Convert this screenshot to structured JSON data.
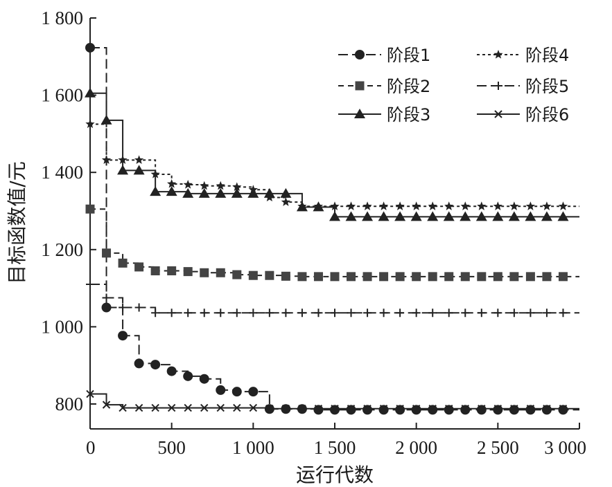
{
  "chart_data": {
    "type": "line",
    "xlabel": "运行代数",
    "ylabel": "目标函数值/元",
    "xlim": [
      0,
      3000
    ],
    "ylim": [
      740,
      1800
    ],
    "xticks": [
      0,
      500,
      1000,
      1500,
      2000,
      2500,
      3000
    ],
    "yticks": [
      800,
      1000,
      1200,
      1400,
      1600,
      1800
    ],
    "xtick_labels": [
      "0",
      "500",
      "1 000",
      "1 500",
      "2 000",
      "2 500",
      "3 000"
    ],
    "ytick_labels": [
      "800",
      "1 000",
      "1 200",
      "1 400",
      "1 600",
      "1 800"
    ],
    "grid": false,
    "legend_position": "top-right",
    "series": [
      {
        "name": "阶段1",
        "style": "dash",
        "marker": "circle",
        "x": [
          0,
          100,
          200,
          300,
          400,
          500,
          600,
          700,
          800,
          900,
          1000,
          1100,
          1200,
          1300,
          1400,
          1500,
          1600,
          1700,
          1800,
          1900,
          2000,
          2100,
          2200,
          2300,
          2400,
          2500,
          2600,
          2700,
          2800,
          2900
        ],
        "values": [
          1723,
          1050,
          977,
          905,
          902,
          885,
          872,
          865,
          836,
          832,
          832,
          787,
          787,
          787,
          785,
          785,
          785,
          785,
          785,
          785,
          785,
          785,
          785,
          785,
          785,
          785,
          785,
          785,
          785,
          785
        ]
      },
      {
        "name": "阶段2",
        "style": "short-dash",
        "marker": "square",
        "x": [
          0,
          100,
          200,
          300,
          400,
          500,
          600,
          700,
          800,
          900,
          1000,
          1100,
          1200,
          1300,
          1400,
          1500,
          1600,
          1700,
          1800,
          1900,
          2000,
          2100,
          2200,
          2300,
          2400,
          2500,
          2600,
          2700,
          2800,
          2900
        ],
        "values": [
          1305,
          1191,
          1165,
          1155,
          1145,
          1145,
          1143,
          1140,
          1140,
          1135,
          1133,
          1133,
          1131,
          1130,
          1130,
          1130,
          1130,
          1130,
          1130,
          1130,
          1130,
          1130,
          1130,
          1130,
          1130,
          1130,
          1130,
          1130,
          1130,
          1130
        ]
      },
      {
        "name": "阶段3",
        "style": "solid",
        "marker": "triangle",
        "x": [
          0,
          100,
          200,
          300,
          400,
          500,
          600,
          700,
          800,
          900,
          1000,
          1100,
          1200,
          1300,
          1400,
          1500,
          1600,
          1700,
          1800,
          1900,
          2000,
          2100,
          2200,
          2300,
          2400,
          2500,
          2600,
          2700,
          2800,
          2900
        ],
        "values": [
          1605,
          1535,
          1405,
          1405,
          1350,
          1350,
          1345,
          1345,
          1345,
          1345,
          1345,
          1345,
          1345,
          1310,
          1310,
          1285,
          1285,
          1285,
          1285,
          1285,
          1285,
          1285,
          1285,
          1285,
          1285,
          1285,
          1285,
          1285,
          1285,
          1285
        ]
      },
      {
        "name": "阶段4",
        "style": "dotted",
        "marker": "star",
        "x": [
          0,
          100,
          200,
          300,
          400,
          500,
          600,
          700,
          800,
          900,
          1000,
          1100,
          1200,
          1300,
          1400,
          1500,
          1600,
          1700,
          1800,
          1900,
          2000,
          2100,
          2200,
          2300,
          2400,
          2500,
          2600,
          2700,
          2800,
          2900
        ],
        "values": [
          1525,
          1432,
          1432,
          1432,
          1395,
          1370,
          1368,
          1365,
          1365,
          1362,
          1355,
          1335,
          1323,
          1312,
          1312,
          1312,
          1312,
          1312,
          1312,
          1312,
          1312,
          1312,
          1312,
          1312,
          1312,
          1312,
          1312,
          1312,
          1312,
          1312
        ]
      },
      {
        "name": "阶段5",
        "style": "dash",
        "marker": "plus",
        "x": [
          0,
          100,
          200,
          300,
          400,
          500,
          600,
          700,
          800,
          900,
          1000,
          1100,
          1200,
          1300,
          1400,
          1500,
          1600,
          1700,
          1800,
          1900,
          2000,
          2100,
          2200,
          2300,
          2400,
          2500,
          2600,
          2700,
          2800,
          2900
        ],
        "values": [
          1110,
          1075,
          1050,
          1050,
          1036,
          1036,
          1036,
          1036,
          1036,
          1036,
          1036,
          1036,
          1036,
          1036,
          1036,
          1036,
          1036,
          1036,
          1036,
          1036,
          1036,
          1036,
          1036,
          1036,
          1036,
          1036,
          1036,
          1036,
          1036,
          1036
        ]
      },
      {
        "name": "阶段6",
        "style": "solid",
        "marker": "x",
        "x": [
          0,
          100,
          200,
          300,
          400,
          500,
          600,
          700,
          800,
          900,
          1000,
          1100,
          1200,
          1300,
          1400,
          1500,
          1600,
          1700,
          1800,
          1900,
          2000,
          2100,
          2200,
          2300,
          2400,
          2500,
          2600,
          2700,
          2800,
          2900
        ],
        "values": [
          826,
          798,
          790,
          790,
          790,
          790,
          790,
          790,
          790,
          790,
          790,
          788,
          788,
          788,
          788,
          788,
          788,
          788,
          788,
          788,
          788,
          788,
          788,
          788,
          788,
          788,
          788,
          788,
          788,
          788
        ]
      }
    ]
  }
}
